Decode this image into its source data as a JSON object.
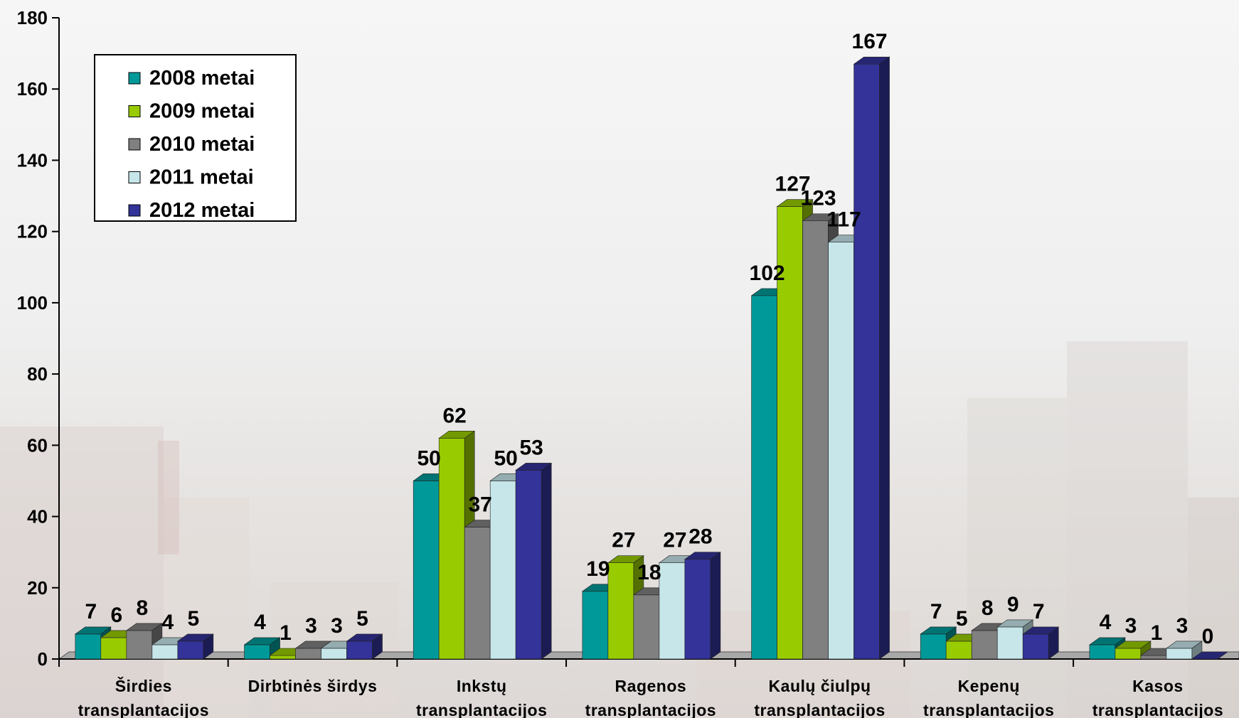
{
  "chart_data": {
    "type": "bar",
    "categories": [
      [
        "Širdies",
        "transplantacijos"
      ],
      [
        "Dirbtinės širdys"
      ],
      [
        "Inkstų",
        "transplantacijos"
      ],
      [
        "Ragenos",
        "transplantacijos"
      ],
      [
        "Kaulų čiulpų",
        "transplantacijos"
      ],
      [
        "Kepenų",
        "transplantacijos"
      ],
      [
        "Kasos",
        "transplantacijos"
      ]
    ],
    "series": [
      {
        "name": "2008 metai",
        "color": "#009999",
        "values": [
          7,
          4,
          50,
          19,
          102,
          7,
          4
        ]
      },
      {
        "name": "2009 metai",
        "color": "#99CC00",
        "values": [
          6,
          1,
          62,
          27,
          127,
          5,
          3
        ]
      },
      {
        "name": "2010 metai",
        "color": "#808080",
        "values": [
          8,
          3,
          37,
          18,
          123,
          8,
          1
        ]
      },
      {
        "name": "2011 metai",
        "color": "#C6E6EA",
        "values": [
          4,
          3,
          50,
          27,
          117,
          9,
          3
        ]
      },
      {
        "name": "2012 metai",
        "color": "#333399",
        "values": [
          5,
          5,
          53,
          28,
          167,
          7,
          0
        ]
      }
    ],
    "ylim": [
      0,
      180
    ],
    "yticks": [
      0,
      20,
      40,
      60,
      80,
      100,
      120,
      140,
      160,
      180
    ],
    "legend_position": "top-left",
    "style": "3d-clustered-column",
    "grid": false
  }
}
